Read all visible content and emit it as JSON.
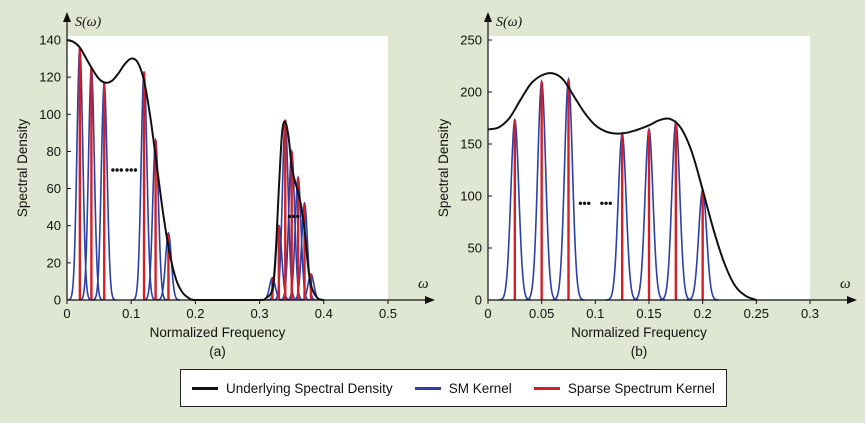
{
  "colors": {
    "background": "#dfe7d3",
    "underlying": "#111111",
    "sm_kernel": "#2a3fa8",
    "sparse_spectrum": "#d41f26"
  },
  "legend": {
    "items": [
      {
        "label": "Underlying Spectral Density",
        "color": "#111111"
      },
      {
        "label": "SM Kernel",
        "color": "#2a3fa8"
      },
      {
        "label": "Sparse Spectrum Kernel",
        "color": "#d41f26"
      }
    ],
    "placement": "bottom-center"
  },
  "chart_data": [
    {
      "type": "line",
      "caption": "(a)",
      "title": "",
      "xlabel": "Normalized Frequency",
      "ylabel": "Spectral Density",
      "y_axis_symbol": "S(ω)",
      "x_axis_symbol": "ω",
      "xlim": [
        0,
        0.5
      ],
      "ylim": [
        0,
        140
      ],
      "xticks": [
        "0",
        "0.1",
        "0.2",
        "0.3",
        "0.4",
        "0.5"
      ],
      "yticks": [
        "0",
        "20",
        "40",
        "60",
        "80",
        "100",
        "120",
        "140"
      ],
      "grid": false,
      "series": [
        {
          "role": "underlying",
          "x": [
            0,
            0.01,
            0.02,
            0.03,
            0.04,
            0.05,
            0.06,
            0.07,
            0.08,
            0.09,
            0.1,
            0.11,
            0.12,
            0.13,
            0.14,
            0.15,
            0.16,
            0.17,
            0.18,
            0.19,
            0.2,
            0.25,
            0.3,
            0.31,
            0.32,
            0.325,
            0.33,
            0.335,
            0.34,
            0.345,
            0.35,
            0.355,
            0.36,
            0.365,
            0.37,
            0.375,
            0.38,
            0.39,
            0.4
          ],
          "values": [
            140,
            139,
            136,
            130,
            124,
            119,
            117,
            118,
            122,
            127,
            130,
            128,
            118,
            98,
            72,
            46,
            25,
            11,
            4,
            1,
            0,
            0,
            0,
            1,
            6,
            25,
            60,
            90,
            96,
            88,
            72,
            64,
            58,
            50,
            38,
            20,
            8,
            1,
            0
          ]
        },
        {
          "role": "sparse_spectrum",
          "x": [
            0.02,
            0.038,
            0.058,
            0.12,
            0.138,
            0.158,
            0.32,
            0.33,
            0.34,
            0.35,
            0.36,
            0.37,
            0.38
          ],
          "values": [
            136,
            125,
            117,
            123,
            86,
            36,
            12,
            40,
            97,
            80,
            66,
            52,
            14
          ]
        },
        {
          "role": "sm_kernel",
          "bandwidth": 0.0045,
          "x": [
            0.02,
            0.038,
            0.058,
            0.12,
            0.138,
            0.158,
            0.32,
            0.33,
            0.34,
            0.35,
            0.36,
            0.37,
            0.38
          ],
          "values": [
            136,
            125,
            117,
            123,
            86,
            36,
            12,
            40,
            97,
            80,
            66,
            52,
            14
          ]
        }
      ],
      "ellipsis": [
        {
          "x": 0.078,
          "y": 70
        },
        {
          "x": 0.1,
          "y": 70
        },
        {
          "x": 0.353,
          "y": 45
        }
      ]
    },
    {
      "type": "line",
      "caption": "(b)",
      "title": "",
      "xlabel": "Normalized Frequency",
      "ylabel": "Spectral Density",
      "y_axis_symbol": "S(ω)",
      "x_axis_symbol": "ω",
      "xlim": [
        0,
        0.3
      ],
      "ylim": [
        0,
        250
      ],
      "xticks": [
        "0",
        "0.05",
        "0.1",
        "0.15",
        "0.2",
        "0.25",
        "0.3"
      ],
      "yticks": [
        "0",
        "50",
        "100",
        "150",
        "200",
        "250"
      ],
      "grid": false,
      "series": [
        {
          "role": "underlying",
          "x": [
            0,
            0.01,
            0.02,
            0.03,
            0.04,
            0.05,
            0.06,
            0.07,
            0.08,
            0.09,
            0.1,
            0.11,
            0.12,
            0.13,
            0.14,
            0.15,
            0.16,
            0.17,
            0.18,
            0.19,
            0.2,
            0.21,
            0.22,
            0.23,
            0.24,
            0.25
          ],
          "values": [
            164,
            166,
            175,
            192,
            208,
            216,
            218,
            212,
            196,
            180,
            168,
            162,
            160,
            161,
            164,
            168,
            173,
            174,
            165,
            142,
            106,
            68,
            36,
            14,
            4,
            0
          ]
        },
        {
          "role": "sparse_spectrum",
          "x": [
            0.025,
            0.05,
            0.075,
            0.125,
            0.15,
            0.175,
            0.2
          ],
          "values": [
            173,
            210,
            212,
            160,
            164,
            171,
            106
          ]
        },
        {
          "role": "sm_kernel",
          "bandwidth": 0.0037,
          "x": [
            0.025,
            0.05,
            0.075,
            0.125,
            0.15,
            0.175,
            0.2
          ],
          "values": [
            173,
            210,
            212,
            160,
            164,
            171,
            106
          ]
        }
      ],
      "ellipsis": [
        {
          "x": 0.09,
          "y": 93
        },
        {
          "x": 0.11,
          "y": 93
        }
      ]
    }
  ]
}
